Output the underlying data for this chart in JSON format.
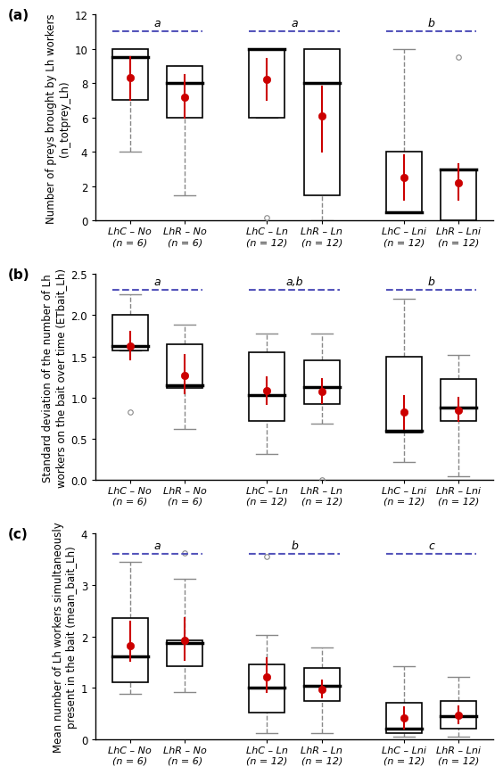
{
  "panels": [
    {
      "label": "(a)",
      "ylabel": "Number of preys brought by Lh workers\n(n_totprey_Lh)",
      "ylim": [
        0,
        12
      ],
      "yticks": [
        0,
        2,
        4,
        6,
        8,
        10,
        12
      ],
      "dashed_line_y": 11.0,
      "groups": [
        {
          "name": "LhC – No",
          "n": "n = 6",
          "q1": 7.0,
          "median": 9.5,
          "q3": 10.0,
          "whisker_low": 4.0,
          "whisker_high": 10.0,
          "mean": 8.3,
          "ci_low": 7.0,
          "ci_high": 9.5,
          "outliers": []
        },
        {
          "name": "LhR – No",
          "n": "n = 6",
          "q1": 6.0,
          "median": 8.0,
          "q3": 9.0,
          "whisker_low": 1.5,
          "whisker_high": 9.0,
          "mean": 7.2,
          "ci_low": 6.0,
          "ci_high": 8.5,
          "outliers": []
        },
        {
          "name": "LhC – Ln",
          "n": "n = 12",
          "q1": 6.0,
          "median": 10.0,
          "q3": 10.0,
          "whisker_low": 6.0,
          "whisker_high": 10.0,
          "mean": 8.2,
          "ci_low": 7.0,
          "ci_high": 9.4,
          "outliers": [
            0.2
          ]
        },
        {
          "name": "LhR – Ln",
          "n": "n = 12",
          "q1": 1.5,
          "median": 8.0,
          "q3": 10.0,
          "whisker_low": 0.0,
          "whisker_high": 10.0,
          "mean": 6.1,
          "ci_low": 4.0,
          "ci_high": 7.8,
          "outliers": []
        },
        {
          "name": "LhC – Lni",
          "n": "n = 12",
          "q1": 0.5,
          "median": 0.5,
          "q3": 4.0,
          "whisker_low": 0.5,
          "whisker_high": 10.0,
          "mean": 2.5,
          "ci_low": 1.2,
          "ci_high": 3.8,
          "outliers": []
        },
        {
          "name": "LhR – Lni",
          "n": "n = 12",
          "q1": 0.0,
          "median": 3.0,
          "q3": 3.0,
          "whisker_low": 0.0,
          "whisker_high": 3.0,
          "mean": 2.2,
          "ci_low": 1.2,
          "ci_high": 3.3,
          "outliers": [
            9.5
          ]
        }
      ],
      "sig_labels": [
        {
          "text": "a",
          "pair": [
            1,
            2
          ]
        },
        {
          "text": "a",
          "pair": [
            3,
            4
          ]
        },
        {
          "text": "b",
          "pair": [
            5,
            6
          ]
        }
      ]
    },
    {
      "label": "(b)",
      "ylabel": "Standard deviation of the number of Lh\nworkers on the bait over time (ETbait_Lh)",
      "ylim": [
        0.0,
        2.5
      ],
      "yticks": [
        0.0,
        0.5,
        1.0,
        1.5,
        2.0,
        2.5
      ],
      "dashed_line_y": 2.3,
      "groups": [
        {
          "name": "LhC – No",
          "n": "n = 6",
          "q1": 1.57,
          "median": 1.62,
          "q3": 2.0,
          "whisker_low": 1.57,
          "whisker_high": 2.25,
          "mean": 1.62,
          "ci_low": 1.46,
          "ci_high": 1.8,
          "outliers": [
            0.82
          ]
        },
        {
          "name": "LhR – No",
          "n": "n = 6",
          "q1": 1.12,
          "median": 1.15,
          "q3": 1.65,
          "whisker_low": 0.62,
          "whisker_high": 1.88,
          "mean": 1.27,
          "ci_low": 1.05,
          "ci_high": 1.52,
          "outliers": []
        },
        {
          "name": "LhC – Ln",
          "n": "n = 12",
          "q1": 0.72,
          "median": 1.03,
          "q3": 1.55,
          "whisker_low": 0.32,
          "whisker_high": 1.78,
          "mean": 1.08,
          "ci_low": 0.92,
          "ci_high": 1.25,
          "outliers": []
        },
        {
          "name": "LhR – Ln",
          "n": "n = 12",
          "q1": 0.92,
          "median": 1.13,
          "q3": 1.45,
          "whisker_low": 0.68,
          "whisker_high": 1.78,
          "mean": 1.07,
          "ci_low": 0.93,
          "ci_high": 1.22,
          "outliers": [
            0.0
          ]
        },
        {
          "name": "LhC – Lni",
          "n": "n = 12",
          "q1": 0.58,
          "median": 0.6,
          "q3": 1.5,
          "whisker_low": 0.22,
          "whisker_high": 2.2,
          "mean": 0.82,
          "ci_low": 0.62,
          "ci_high": 1.02,
          "outliers": []
        },
        {
          "name": "LhR – Lni",
          "n": "n = 12",
          "q1": 0.72,
          "median": 0.88,
          "q3": 1.22,
          "whisker_low": 0.05,
          "whisker_high": 1.52,
          "mean": 0.85,
          "ci_low": 0.72,
          "ci_high": 1.0,
          "outliers": []
        }
      ],
      "sig_labels": [
        {
          "text": "a",
          "pair": [
            1,
            2
          ]
        },
        {
          "text": "a,b",
          "pair": [
            3,
            4
          ]
        },
        {
          "text": "b",
          "pair": [
            5,
            6
          ]
        }
      ]
    },
    {
      "label": "(c)",
      "ylabel": "Mean number of Lh workers simultaneously\npresent in the bait (mean_bait_Lh)",
      "ylim": [
        0,
        4
      ],
      "yticks": [
        0,
        1,
        2,
        3,
        4
      ],
      "dashed_line_y": 3.6,
      "groups": [
        {
          "name": "LhC – No",
          "n": "n = 6",
          "q1": 1.12,
          "median": 1.62,
          "q3": 2.35,
          "whisker_low": 0.88,
          "whisker_high": 3.45,
          "mean": 1.82,
          "ci_low": 1.52,
          "ci_high": 2.28,
          "outliers": []
        },
        {
          "name": "LhR – No",
          "n": "n = 6",
          "q1": 1.42,
          "median": 1.88,
          "q3": 1.92,
          "whisker_low": 0.92,
          "whisker_high": 3.12,
          "mean": 1.93,
          "ci_low": 1.55,
          "ci_high": 2.35,
          "outliers": [
            3.62
          ]
        },
        {
          "name": "LhC – Ln",
          "n": "n = 12",
          "q1": 0.52,
          "median": 1.0,
          "q3": 1.45,
          "whisker_low": 0.12,
          "whisker_high": 2.02,
          "mean": 1.22,
          "ci_low": 0.92,
          "ci_high": 1.58,
          "outliers": [
            3.55
          ]
        },
        {
          "name": "LhR – Ln",
          "n": "n = 12",
          "q1": 0.75,
          "median": 1.05,
          "q3": 1.38,
          "whisker_low": 0.12,
          "whisker_high": 1.78,
          "mean": 0.98,
          "ci_low": 0.82,
          "ci_high": 1.15,
          "outliers": []
        },
        {
          "name": "LhC – Lni",
          "n": "n = 12",
          "q1": 0.12,
          "median": 0.22,
          "q3": 0.72,
          "whisker_low": 0.05,
          "whisker_high": 1.42,
          "mean": 0.42,
          "ci_low": 0.22,
          "ci_high": 0.62,
          "outliers": []
        },
        {
          "name": "LhR – Lni",
          "n": "n = 12",
          "q1": 0.22,
          "median": 0.45,
          "q3": 0.75,
          "whisker_low": 0.05,
          "whisker_high": 1.22,
          "mean": 0.48,
          "ci_low": 0.32,
          "ci_high": 0.65,
          "outliers": []
        }
      ],
      "sig_labels": [
        {
          "text": "a",
          "pair": [
            1,
            2
          ]
        },
        {
          "text": "b",
          "pair": [
            3,
            4
          ]
        },
        {
          "text": "c",
          "pair": [
            5,
            6
          ]
        }
      ]
    }
  ],
  "box_color": "#ffffff",
  "box_edge_color": "#000000",
  "whisker_color": "#888888",
  "median_color": "#000000",
  "mean_color": "#cc0000",
  "outlier_color": "#888888",
  "dashed_color": "#5555bb",
  "background_color": "#ffffff"
}
